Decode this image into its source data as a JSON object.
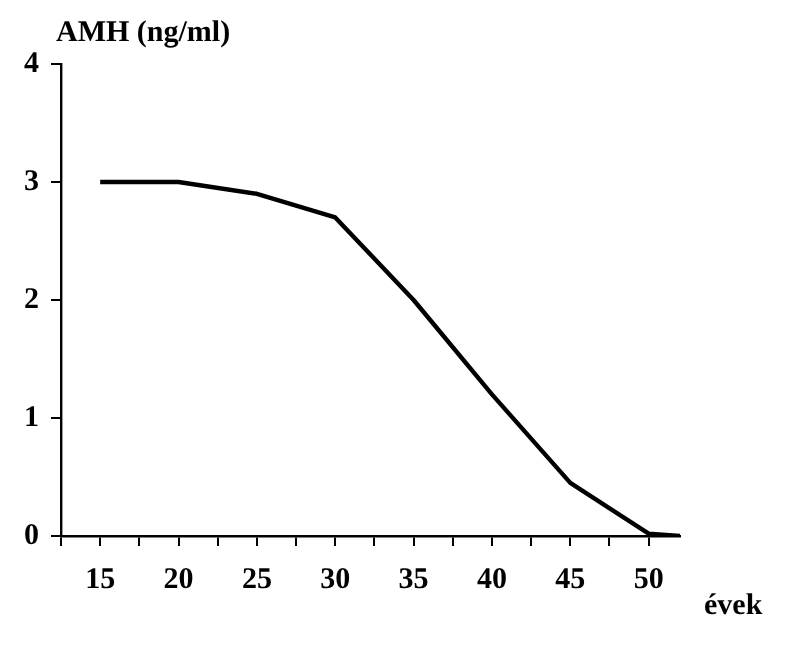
{
  "chart_data": {
    "type": "line",
    "ylabel": "AMH (ng/ml)",
    "xlabel": "évek",
    "x": [
      15,
      20,
      25,
      30,
      35,
      40,
      45,
      50,
      52
    ],
    "series": [
      {
        "color": "#000000",
        "values": [
          3,
          3,
          2.9,
          2.7,
          2.0,
          1.2,
          0.45,
          0.02,
          0
        ]
      }
    ],
    "xlim": [
      12.5,
      52
    ],
    "xticks": [
      {
        "value": 12.5,
        "label": null
      },
      15,
      {
        "value": 17.5,
        "label": null
      },
      20,
      {
        "value": 22.5,
        "label": null
      },
      25,
      {
        "value": 27.5,
        "label": null
      },
      30,
      {
        "value": 32.5,
        "label": null
      },
      35,
      {
        "value": 37.5,
        "label": null
      },
      40,
      {
        "value": 42.5,
        "label": null
      },
      45,
      {
        "value": 47.5,
        "label": null
      },
      50
    ],
    "ylim": [
      0,
      4
    ],
    "yticks": [
      0,
      1,
      2,
      3,
      4
    ],
    "grid": false,
    "legend": false,
    "marker": "none",
    "line_style": "solid"
  }
}
